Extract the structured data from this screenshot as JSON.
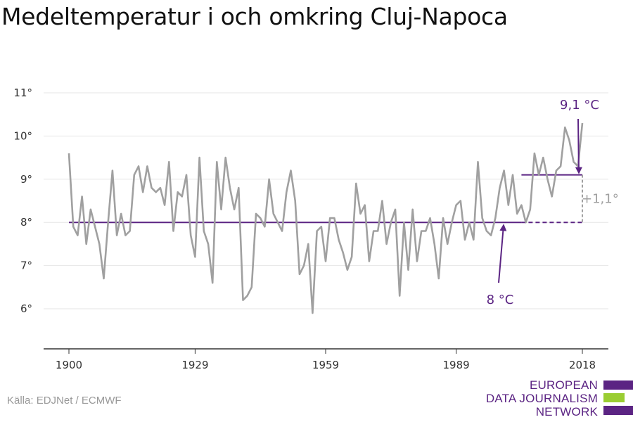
{
  "title": "Medeltemperatur i och omkring Cluj-Napoca",
  "source": "Källa: EDJNet / ECMWF",
  "logo": {
    "lines": [
      "EUROPEAN",
      "DATA JOURNALISM",
      "NETWORK"
    ],
    "colors": [
      "#5b2483",
      "#9acd32",
      "#5b2483"
    ]
  },
  "colors": {
    "series": "#a0a0a0",
    "annotation": "#5b2483",
    "difference": "#a0a0a0",
    "grid": "#e6e6e6"
  },
  "chart_data": {
    "type": "line",
    "title": "Medeltemperatur i och omkring Cluj-Napoca",
    "xlabel": "",
    "ylabel": "",
    "xlim": [
      1900,
      2018
    ],
    "ylim": [
      5,
      11
    ],
    "x_ticks": [
      1900,
      1929,
      1959,
      1989,
      2018
    ],
    "y_ticks": [
      6,
      7,
      8,
      9,
      10,
      11
    ],
    "y_tick_suffix": "°",
    "grid": true,
    "x_start": 1900,
    "values": [
      9.6,
      7.9,
      7.7,
      8.6,
      7.5,
      8.3,
      7.9,
      7.5,
      6.7,
      8.0,
      9.2,
      7.7,
      8.2,
      7.7,
      7.8,
      9.1,
      9.3,
      8.7,
      9.3,
      8.8,
      8.7,
      8.8,
      8.4,
      9.4,
      7.8,
      8.7,
      8.6,
      9.1,
      7.7,
      7.2,
      9.5,
      7.8,
      7.5,
      6.6,
      9.4,
      8.3,
      9.5,
      8.8,
      8.3,
      8.8,
      6.2,
      6.3,
      6.5,
      8.2,
      8.1,
      7.9,
      9.0,
      8.2,
      8.0,
      7.8,
      8.7,
      9.2,
      8.5,
      6.8,
      7.0,
      7.5,
      5.9,
      7.8,
      7.9,
      7.1,
      8.1,
      8.1,
      7.6,
      7.3,
      6.9,
      7.2,
      8.9,
      8.2,
      8.4,
      7.1,
      7.8,
      7.8,
      8.5,
      7.5,
      8.0,
      8.3,
      6.3,
      8.0,
      6.9,
      8.3,
      7.1,
      7.8,
      7.8,
      8.1,
      7.5,
      6.7,
      8.1,
      7.5,
      8.0,
      8.4,
      8.5,
      7.6,
      8.0,
      7.6,
      9.4,
      8.1,
      7.8,
      7.7,
      8.1,
      8.8,
      9.2,
      8.4,
      9.1,
      8.2,
      8.4,
      8.0,
      8.3,
      9.6,
      9.1,
      9.5,
      9.0,
      8.6,
      9.2,
      9.3,
      10.2,
      9.9,
      9.4,
      9.3,
      10.3
    ],
    "annotations": {
      "baseline": {
        "value": 8.0,
        "label": "8 °C",
        "from_year": 1900,
        "to_year": 2018
      },
      "recent": {
        "value": 9.1,
        "label": "9,1 °C",
        "from_year": 2004,
        "to_year": 2018
      },
      "difference_label": "+1,1°"
    }
  }
}
